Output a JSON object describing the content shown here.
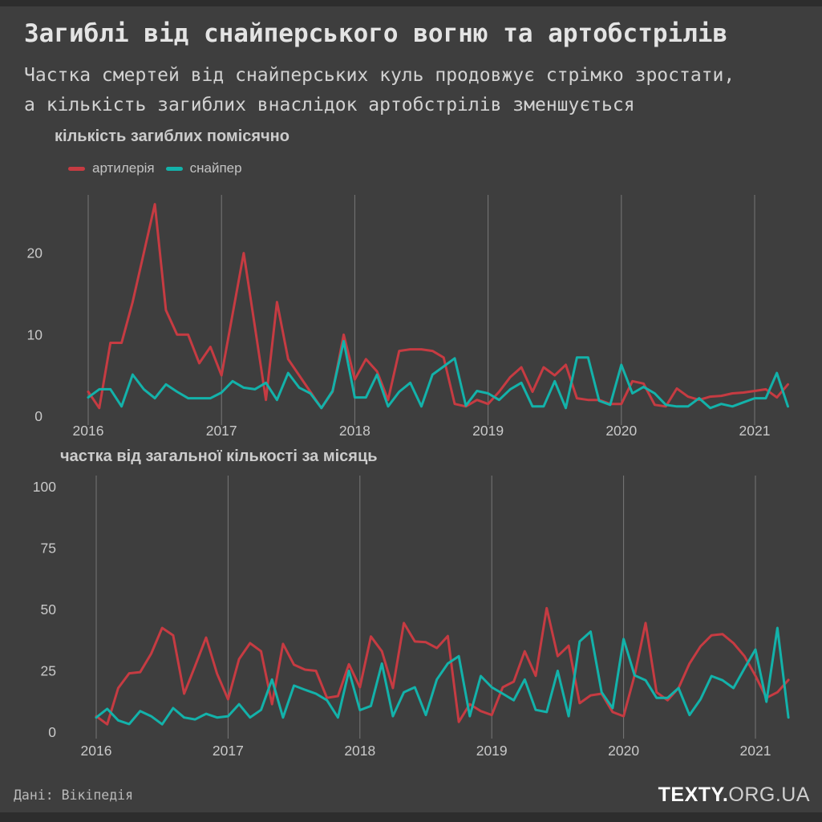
{
  "page": {
    "background": "#3e3e3e",
    "edge_color": "#2d2d2d"
  },
  "header": {
    "title": "Загиблі від снайперського вогню та артобстрілів",
    "subtitle_lines": [
      "Частка смертей від снайперських куль продовжує стрімко зростати,",
      "а кількість загиблих внаслідок артобстрілів зменшується"
    ]
  },
  "legend": {
    "items": [
      {
        "label": "артилерія",
        "color": "#c63b42"
      },
      {
        "label": "снайпер",
        "color": "#13b2aa"
      }
    ]
  },
  "footer": {
    "source": "Дані: Вікіпедія",
    "logo_bold": "TEXTY.",
    "logo_light": "ORG.UA"
  },
  "colors": {
    "artillery": "#c63b42",
    "sniper": "#13b2aa",
    "grid": "#bdbdbd",
    "tick_text": "#c9c9c9"
  },
  "chart_data": [
    {
      "id": "deaths-monthly",
      "type": "line",
      "title": "кількість загиблих помісячно",
      "x_unit": "month",
      "x_start": "2016-01",
      "x_end": "2021-04",
      "grid": "vertical-year-lines",
      "legend_position": "top-left",
      "ylim": [
        0,
        27
      ],
      "y_ticks": [
        0,
        10,
        20
      ],
      "x_ticks": [
        {
          "label": "2016",
          "month": 0
        },
        {
          "label": "2017",
          "month": 12
        },
        {
          "label": "2018",
          "month": 24
        },
        {
          "label": "2019",
          "month": 36
        },
        {
          "label": "2020",
          "month": 48
        },
        {
          "label": "2021",
          "month": 60
        }
      ],
      "series": [
        {
          "name": "артилерія",
          "color": "#c63b42",
          "values": [
            3,
            1,
            9,
            9,
            14,
            20,
            26,
            13,
            10,
            10,
            6.5,
            8.5,
            5,
            12.5,
            20,
            11,
            2,
            14,
            7,
            5,
            3,
            1,
            3,
            10,
            4.5,
            7,
            5.5,
            2,
            8,
            8.2,
            8.2,
            8,
            7.2,
            1.5,
            1.2,
            2,
            1.5,
            3,
            4.8,
            6,
            3,
            6,
            5,
            6.3,
            2.2,
            2,
            2,
            1.5,
            1.5,
            4.3,
            4,
            1.4,
            1.2,
            3.4,
            2.4,
            2,
            2.4,
            2.5,
            2.8,
            2.9,
            3.1,
            3.3,
            2.3,
            3.9
          ]
        },
        {
          "name": "снайпер",
          "color": "#13b2aa",
          "values": [
            2.3,
            3.3,
            3.3,
            1.2,
            5.1,
            3.3,
            2.2,
            3.9,
            3,
            2.2,
            2.2,
            2.2,
            2.9,
            4.3,
            3.5,
            3.3,
            4.1,
            2,
            5.3,
            3.5,
            2.8,
            1,
            3.1,
            9.2,
            2.3,
            2.3,
            5.1,
            1.2,
            3,
            4.1,
            1.2,
            5.1,
            6.1,
            7.1,
            1.3,
            3.1,
            2.8,
            2,
            3.3,
            4.1,
            1.2,
            1.2,
            4.3,
            1,
            7.2,
            7.2,
            1.9,
            1.4,
            6.3,
            2.8,
            3.6,
            2.8,
            1.4,
            1.2,
            1.2,
            2.2,
            1,
            1.5,
            1.2,
            1.7,
            2.2,
            2.2,
            5.3,
            1.2
          ]
        }
      ]
    },
    {
      "id": "share-monthly",
      "type": "line",
      "title": "частка від загальної кількості за місяць",
      "x_unit": "month",
      "x_start": "2016-01",
      "x_end": "2021-04",
      "grid": "vertical-year-lines",
      "ylim": [
        0,
        100
      ],
      "y_ticks": [
        0,
        25,
        50,
        75,
        100
      ],
      "x_ticks": [
        {
          "label": "2016",
          "month": 0
        },
        {
          "label": "2017",
          "month": 12
        },
        {
          "label": "2018",
          "month": 24
        },
        {
          "label": "2019",
          "month": 36
        },
        {
          "label": "2020",
          "month": 48
        },
        {
          "label": "2021",
          "month": 60
        }
      ],
      "series": [
        {
          "name": "артилерія",
          "color": "#c63b42",
          "values": [
            6.5,
            3.2,
            18,
            24,
            24.5,
            32,
            42.5,
            39.5,
            15.7,
            27,
            38.6,
            23.8,
            13.4,
            29.8,
            36.3,
            33,
            11.4,
            36,
            27.5,
            25.5,
            25,
            14,
            14.7,
            27.7,
            18.3,
            39,
            33,
            18,
            44.5,
            37,
            36.7,
            34.3,
            39.2,
            4.2,
            11.4,
            8.6,
            7,
            18.3,
            20.6,
            33,
            23,
            50.6,
            31,
            35.3,
            11.8,
            15,
            15.7,
            8.2,
            6.5,
            23.2,
            44.5,
            16.3,
            13,
            18,
            28,
            35,
            39.5,
            40,
            36.3,
            31,
            23,
            14,
            16.3,
            21.3
          ]
        },
        {
          "name": "снайпер",
          "color": "#13b2aa",
          "values": [
            6,
            9.5,
            4.8,
            3.3,
            8.6,
            6.5,
            3.2,
            9.8,
            6,
            5.2,
            7.5,
            6,
            6.5,
            11.4,
            6,
            9.1,
            21.5,
            6,
            19,
            17.3,
            15.7,
            13,
            6,
            25,
            9,
            10.7,
            28,
            6.5,
            16.3,
            18.3,
            7,
            21.5,
            28,
            31,
            6.5,
            22.9,
            18.3,
            15.7,
            13,
            21.5,
            9.1,
            8.2,
            25,
            6.5,
            37,
            41,
            16.3,
            9.8,
            38,
            23.2,
            21.2,
            14,
            14,
            18,
            7,
            13.4,
            22.9,
            21.2,
            18,
            26,
            33.7,
            12.4,
            42.5,
            6
          ]
        }
      ]
    }
  ]
}
